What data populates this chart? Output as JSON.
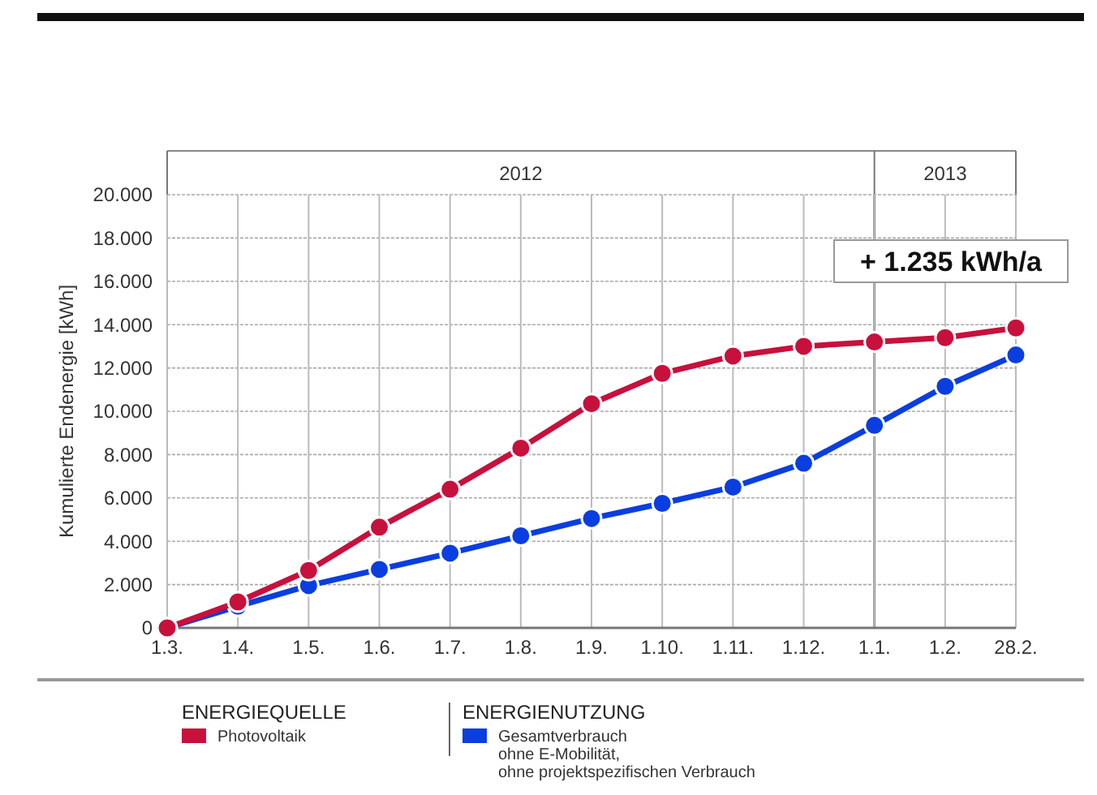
{
  "chart_data": {
    "type": "line",
    "ylabel": "Kumulierte Endenergie [kWh]",
    "categories": [
      "1.3.",
      "1.4.",
      "1.5.",
      "1.6.",
      "1.7.",
      "1.8.",
      "1.9.",
      "1.10.",
      "1.11.",
      "1.12.",
      "1.1.",
      "1.2.",
      "28.2."
    ],
    "series": [
      {
        "name": "Photovoltaik",
        "color": "#c8103c",
        "values": [
          0,
          1200,
          2650,
          4650,
          6400,
          8300,
          10350,
          11750,
          12550,
          13000,
          13200,
          13400,
          13850
        ]
      },
      {
        "name": "Gesamtverbrauch\nohne E-Mobilität,\nohne projektspezifischen Verbrauch",
        "color": "#0a3ee0",
        "values": [
          0,
          1000,
          1950,
          2700,
          3450,
          4250,
          5050,
          5750,
          6500,
          7600,
          9350,
          11150,
          12600
        ]
      }
    ],
    "ylim": [
      0,
      20000
    ],
    "yticks": [
      {
        "value": 0,
        "label": "0"
      },
      {
        "value": 2000,
        "label": "2.000"
      },
      {
        "value": 4000,
        "label": "4.000"
      },
      {
        "value": 6000,
        "label": "6.000"
      },
      {
        "value": 8000,
        "label": "8.000"
      },
      {
        "value": 10000,
        "label": "10.000"
      },
      {
        "value": 12000,
        "label": "12.000"
      },
      {
        "value": 14000,
        "label": "14.000"
      },
      {
        "value": 16000,
        "label": "16.000"
      },
      {
        "value": 18000,
        "label": "18.000"
      },
      {
        "value": 20000,
        "label": "20.000"
      }
    ],
    "annotations": [
      "+ 1.235 kWh/a",
      "2012",
      "2013",
      "ENERGIEQUELLE",
      "ENERGIENUTZUNG"
    ],
    "ref_lines": [
      {
        "axis": "x",
        "value": "1.1.",
        "color": "#777777"
      }
    ],
    "grid": true,
    "legend": "bottom",
    "marker": "circle",
    "line_style": "solid"
  }
}
